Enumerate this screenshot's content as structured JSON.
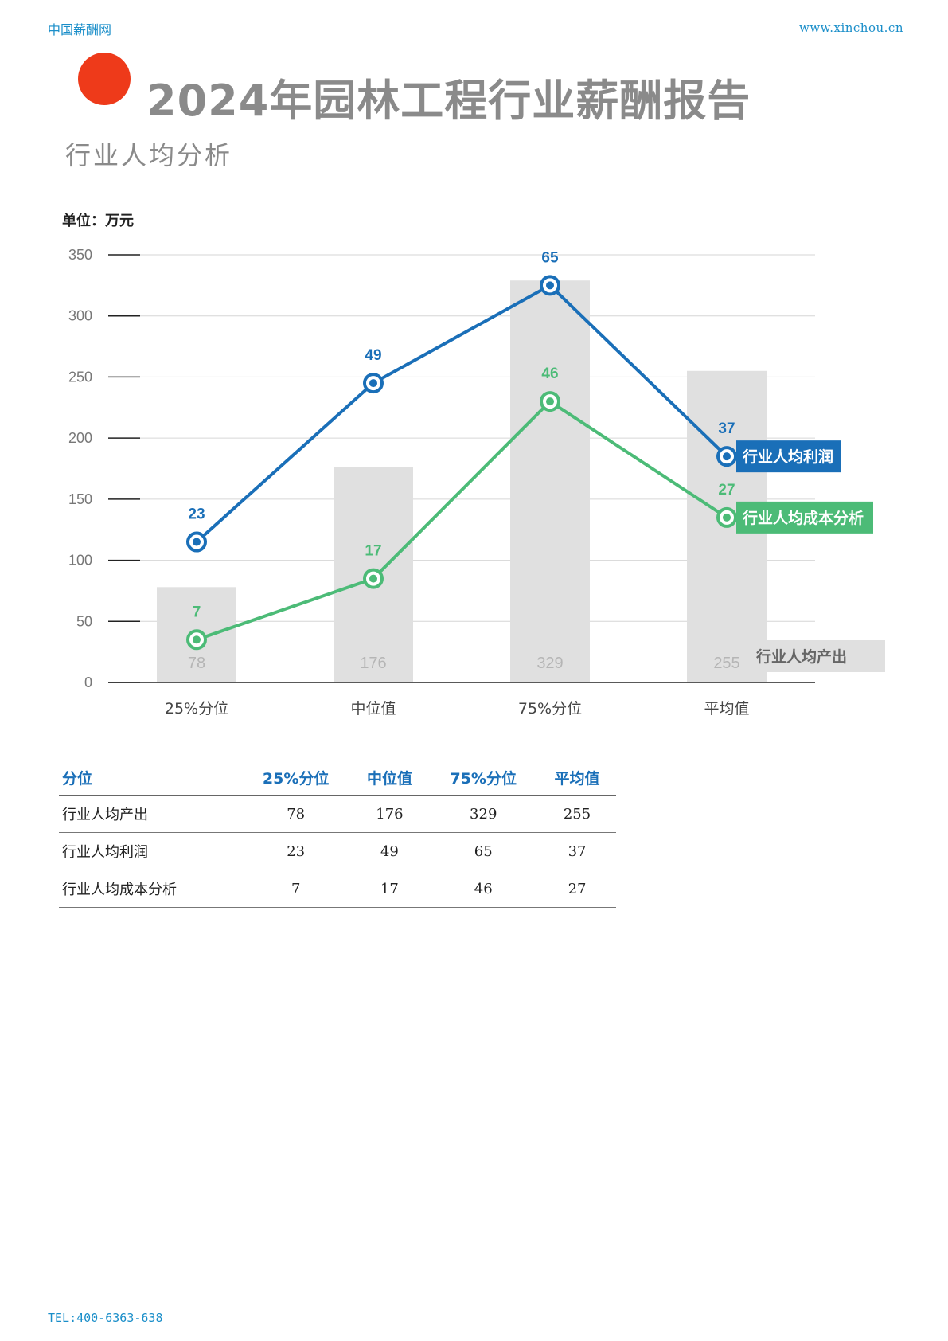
{
  "header": {
    "brand": "中国薪酬网",
    "site": "www.xinchou.cn",
    "title": "2024年园林工程行业薪酬报告",
    "subtitle": "行业人均分析"
  },
  "unit_label": "单位：万元",
  "colors": {
    "profit": "#1a6fb8",
    "cost": "#4cbb77",
    "output_bar": "#e0e0e0",
    "accent_dot": "#ee3a1a"
  },
  "chart_data": {
    "type": "bar",
    "categories": [
      "25%分位",
      "中位值",
      "75%分位",
      "平均值"
    ],
    "ylim": [
      0,
      350
    ],
    "yticks": [
      0,
      50,
      100,
      150,
      200,
      250,
      300,
      350
    ],
    "grid": true,
    "series": [
      {
        "name": "行业人均产出",
        "kind": "bar",
        "values": [
          78,
          176,
          329,
          255
        ]
      },
      {
        "name": "行业人均利润",
        "kind": "line",
        "labels": [
          23,
          49,
          65,
          37
        ],
        "plot_values": [
          115,
          245,
          325,
          185
        ]
      },
      {
        "name": "行业人均成本分析",
        "kind": "line",
        "labels": [
          7,
          17,
          46,
          27
        ],
        "plot_values": [
          35,
          85,
          230,
          135
        ]
      }
    ]
  },
  "table": {
    "header": [
      "分位",
      "25%分位",
      "中位值",
      "75%分位",
      "平均值"
    ],
    "rows": [
      {
        "label": "行业人均产出",
        "values": [
          "78",
          "176",
          "329",
          "255"
        ]
      },
      {
        "label": "行业人均利润",
        "values": [
          "23",
          "49",
          "65",
          "37"
        ]
      },
      {
        "label": "行业人均成本分析",
        "values": [
          "7",
          "17",
          "46",
          "27"
        ]
      }
    ]
  },
  "footer": {
    "tel": "TEL:400-6363-638"
  }
}
